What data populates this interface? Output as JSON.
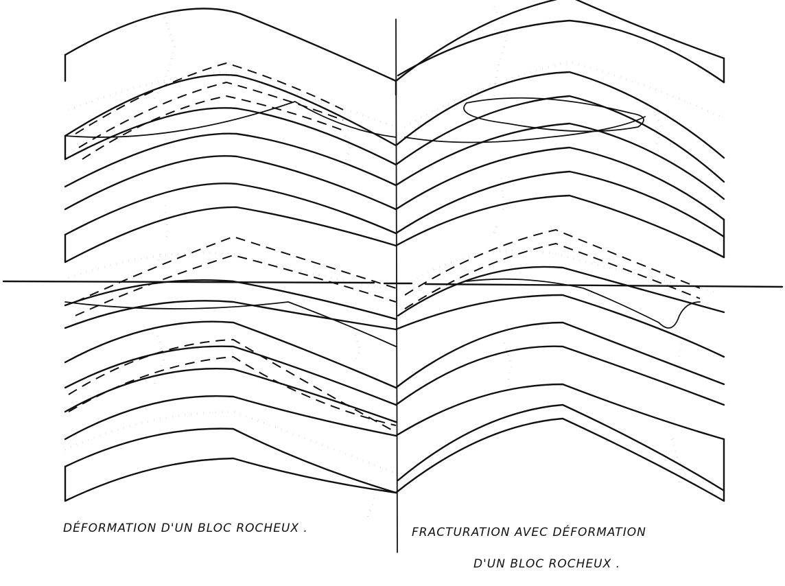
{
  "captions": {
    "left": "DÉFORMATION D'UN BLOC ROCHEUX .",
    "right_line1": "FRACTURATION AVEC DÉFORMATION",
    "right_line2": "D'UN BLOC ROCHEUX ."
  },
  "colors": {
    "ink": "#111111",
    "paper": "#ffffff"
  }
}
